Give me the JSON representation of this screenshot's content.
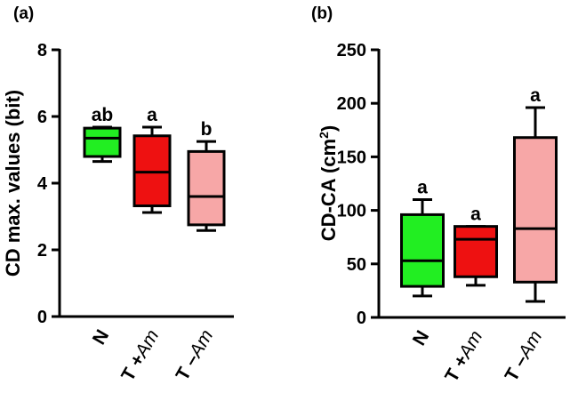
{
  "chart_data": [
    {
      "type": "box",
      "panel_label": "(a)",
      "ylabel": "CD max. values (bit)",
      "ylim": [
        0,
        8
      ],
      "yticks": [
        0,
        2,
        4,
        6,
        8
      ],
      "grid": false,
      "categories": [
        {
          "main": "N",
          "modifier": ""
        },
        {
          "main": "T +",
          "modifier": "Am"
        },
        {
          "main": "T –",
          "modifier": "Am"
        }
      ],
      "boxes": [
        {
          "min": 4.65,
          "q1": 4.8,
          "median": 5.35,
          "q3": 5.65,
          "max": 5.68,
          "letter": "ab",
          "color": "#22ee22"
        },
        {
          "min": 3.12,
          "q1": 3.32,
          "median": 4.33,
          "q3": 5.42,
          "max": 5.68,
          "letter": "a",
          "color": "#ee1111"
        },
        {
          "min": 2.58,
          "q1": 2.75,
          "median": 3.6,
          "q3": 4.95,
          "max": 5.25,
          "letter": "b",
          "color": "#f7a7a7"
        }
      ]
    },
    {
      "type": "box",
      "panel_label": "(b)",
      "ylabel_main": "CD-CA (cm",
      "ylabel_sup": "2",
      "ylabel_end": ")",
      "ylim": [
        0,
        250
      ],
      "yticks": [
        0,
        50,
        100,
        150,
        200,
        250
      ],
      "grid": false,
      "categories": [
        {
          "main": "N",
          "modifier": ""
        },
        {
          "main": "T +",
          "modifier": "Am"
        },
        {
          "main": "T –",
          "modifier": "Am"
        }
      ],
      "boxes": [
        {
          "min": 20,
          "q1": 29,
          "median": 53,
          "q3": 96,
          "max": 110,
          "letter": "a",
          "color": "#22ee22"
        },
        {
          "min": 30,
          "q1": 38,
          "median": 73,
          "q3": 85,
          "max": 85,
          "letter": "a",
          "color": "#ee1111"
        },
        {
          "min": 15,
          "q1": 33,
          "median": 83,
          "q3": 168,
          "max": 196,
          "letter": "a",
          "color": "#f7a7a7"
        }
      ]
    }
  ]
}
